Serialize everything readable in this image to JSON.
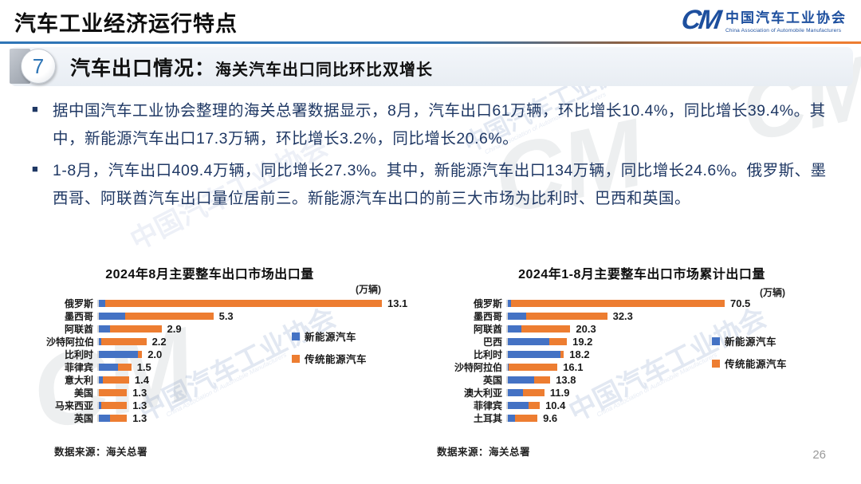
{
  "slide": {
    "title": "汽车工业经济运行特点",
    "page_number": "26"
  },
  "logo": {
    "monogram": "CM",
    "name_cn": "中国汽车工业协会",
    "name_en": "China Association of Automobile Manufacturers"
  },
  "section": {
    "badge": "7",
    "heading": "汽车出口情况：",
    "subheading": "海关汽车出口同比环比双增长"
  },
  "bullets": [
    {
      "marker": "■",
      "text": "据中国汽车工业协会整理的海关总署数据显示，8月，汽车出口61万辆，环比增长10.4%，同比增长39.4%。其中，新能源汽车出口17.3万辆，环比增长3.2%，同比增长20.6%。"
    },
    {
      "marker": "■",
      "text": "1-8月，汽车出口409.4万辆，同比增长27.3%。其中，新能源汽车出口134万辆，同比增长24.6%。俄罗斯、墨西哥、阿联酋汽车出口量位居前三。新能源汽车出口的前三大市场为比利时、巴西和英国。"
    }
  ],
  "colors": {
    "nev_blue": "#4472C4",
    "trad_orange": "#ED7D31",
    "rule_blue": "#2E75B6",
    "body_text": "#1F3864",
    "logo_blue": "#1D4F9E"
  },
  "chart_data": [
    {
      "type": "bar",
      "orientation": "horizontal",
      "stacked": true,
      "title": "2024年8月主要整车出口市场出口量",
      "unit_label": "(万辆)",
      "source": "数据来源：海关总署",
      "legend_position": "right",
      "xlim": [
        0,
        13.1
      ],
      "categories": [
        "俄罗斯",
        "墨西哥",
        "阿联酋",
        "沙特阿拉伯",
        "比利时",
        "菲律宾",
        "意大利",
        "美国",
        "马来西亚",
        "英国"
      ],
      "series": [
        {
          "name": "新能源汽车",
          "color": "#4472C4",
          "values": [
            0.3,
            1.2,
            0.5,
            0.1,
            1.8,
            0.9,
            0.2,
            0.0,
            0.1,
            0.5
          ]
        },
        {
          "name": "传统能源汽车",
          "color": "#ED7D31",
          "values": [
            12.8,
            4.1,
            2.4,
            2.1,
            0.2,
            0.6,
            1.2,
            1.3,
            1.2,
            0.8
          ]
        }
      ],
      "totals": [
        "13.1",
        "5.3",
        "2.9",
        "2.2",
        "2.0",
        "1.5",
        "1.4",
        "1.3",
        "1.3",
        "1.3"
      ]
    },
    {
      "type": "bar",
      "orientation": "horizontal",
      "stacked": true,
      "title": "2024年1-8月主要整车出口市场累计出口量",
      "unit_label": "(万辆)",
      "source": "数据来源：海关总署",
      "legend_position": "right",
      "xlim": [
        0,
        70.5
      ],
      "categories": [
        "俄罗斯",
        "墨西哥",
        "阿联酋",
        "巴西",
        "比利时",
        "沙特阿拉伯",
        "英国",
        "澳大利亚",
        "菲律宾",
        "土耳其"
      ],
      "series": [
        {
          "name": "新能源汽车",
          "color": "#4472C4",
          "values": [
            1.0,
            6.0,
            4.5,
            13.5,
            17.2,
            0.3,
            8.5,
            5.0,
            6.8,
            2.3
          ]
        },
        {
          "name": "传统能源汽车",
          "color": "#ED7D31",
          "values": [
            69.5,
            26.3,
            15.8,
            5.7,
            1.0,
            15.8,
            5.3,
            6.9,
            3.6,
            7.3
          ]
        }
      ],
      "totals": [
        "70.5",
        "32.3",
        "20.3",
        "19.2",
        "18.2",
        "16.1",
        "13.8",
        "11.9",
        "10.4",
        "9.6"
      ]
    }
  ],
  "watermark": {
    "text_cn": "中国汽车工业协会",
    "text_en": "China Association of Automobile Manufacturers",
    "monogram": "CM"
  }
}
